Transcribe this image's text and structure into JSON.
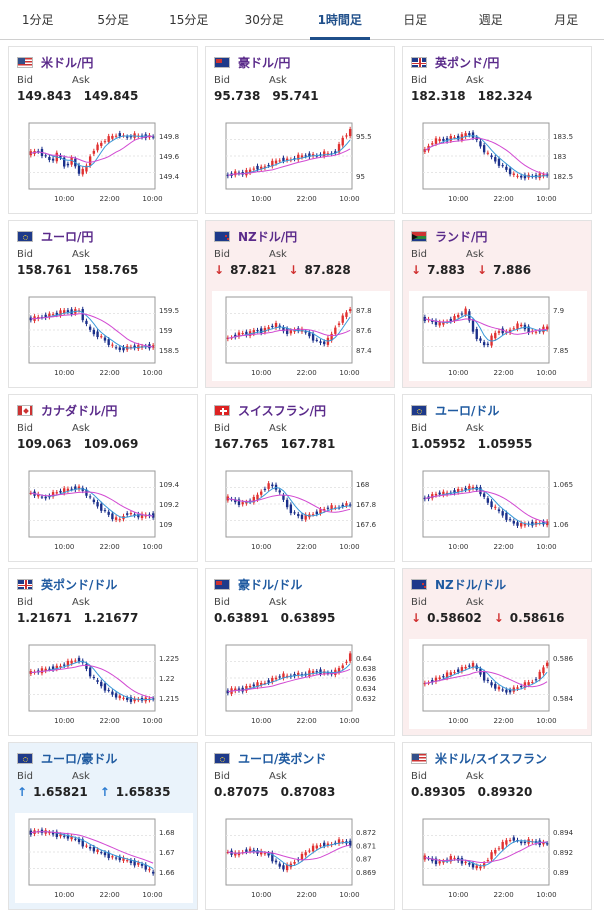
{
  "tabs": [
    {
      "label": "1分足",
      "active": false
    },
    {
      "label": "5分足",
      "active": false
    },
    {
      "label": "15分足",
      "active": false
    },
    {
      "label": "30分足",
      "active": false
    },
    {
      "label": "1時間足",
      "active": true
    },
    {
      "label": "日足",
      "active": false
    },
    {
      "label": "週足",
      "active": false
    },
    {
      "label": "月足",
      "active": false
    }
  ],
  "labels": {
    "bid": "Bid",
    "ask": "Ask"
  },
  "cards": [
    {
      "name": "米ドル/円",
      "flag": "us",
      "bid": "149.843",
      "ask": "149.845",
      "dir": "",
      "bg": "",
      "nameColor": "purple",
      "chart": {
        "yticks": [
          "149.8",
          "149.6",
          "149.4"
        ],
        "xticks": [
          "10:00",
          "22:00",
          "10:00"
        ],
        "trend": [
          0.55,
          0.6,
          0.5,
          0.4,
          0.55,
          0.3,
          0.45,
          0.2,
          0.25,
          0.6,
          0.7,
          0.8,
          0.85,
          0.9,
          0.82,
          0.88,
          0.85,
          0.86,
          0.84
        ]
      }
    },
    {
      "name": "豪ドル/円",
      "flag": "au",
      "bid": "95.738",
      "ask": "95.741",
      "dir": "",
      "bg": "",
      "nameColor": "purple",
      "chart": {
        "yticks": [
          "95.5",
          "95"
        ],
        "xticks": [
          "10:00",
          "22:00",
          "10:00"
        ],
        "trend": [
          0.15,
          0.2,
          0.18,
          0.22,
          0.3,
          0.28,
          0.35,
          0.4,
          0.45,
          0.42,
          0.48,
          0.5,
          0.52,
          0.5,
          0.55,
          0.53,
          0.6,
          0.85,
          0.95
        ]
      }
    },
    {
      "name": "英ポンド/円",
      "flag": "uk",
      "bid": "182.318",
      "ask": "182.324",
      "dir": "",
      "bg": "",
      "nameColor": "purple",
      "chart": {
        "yticks": [
          "183.5",
          "183",
          "182.5"
        ],
        "xticks": [
          "10:00",
          "22:00",
          "10:00"
        ],
        "trend": [
          0.6,
          0.75,
          0.8,
          0.78,
          0.85,
          0.82,
          0.9,
          0.88,
          0.7,
          0.55,
          0.45,
          0.35,
          0.25,
          0.15,
          0.12,
          0.14,
          0.13,
          0.15,
          0.16
        ]
      }
    },
    {
      "name": "ユーロ/円",
      "flag": "eu",
      "bid": "158.761",
      "ask": "158.765",
      "dir": "",
      "bg": "",
      "nameColor": "purple",
      "chart": {
        "yticks": [
          "159.5",
          "159",
          "158.5"
        ],
        "xticks": [
          "10:00",
          "22:00",
          "10:00"
        ],
        "trend": [
          0.7,
          0.72,
          0.75,
          0.78,
          0.8,
          0.85,
          0.82,
          0.88,
          0.6,
          0.45,
          0.4,
          0.3,
          0.2,
          0.15,
          0.18,
          0.2,
          0.19,
          0.21,
          0.2
        ]
      }
    },
    {
      "name": "NZドル/円",
      "flag": "nz",
      "bid": "87.821",
      "ask": "87.828",
      "dir": "down",
      "bg": "pink",
      "nameColor": "purple",
      "chart": {
        "yticks": [
          "87.8",
          "87.6",
          "87.4"
        ],
        "xticks": [
          "10:00",
          "22:00",
          "10:00"
        ],
        "trend": [
          0.35,
          0.4,
          0.45,
          0.42,
          0.5,
          0.48,
          0.55,
          0.6,
          0.5,
          0.45,
          0.52,
          0.48,
          0.4,
          0.3,
          0.25,
          0.35,
          0.6,
          0.75,
          0.9
        ]
      }
    },
    {
      "name": "ランド/円",
      "flag": "za",
      "bid": "7.883",
      "ask": "7.886",
      "dir": "down",
      "bg": "pink",
      "nameColor": "purple",
      "chart": {
        "yticks": [
          "7.9",
          "7.85"
        ],
        "xticks": [
          "10:00",
          "22:00",
          "10:00"
        ],
        "trend": [
          0.7,
          0.65,
          0.6,
          0.65,
          0.7,
          0.78,
          0.85,
          0.5,
          0.3,
          0.2,
          0.4,
          0.5,
          0.45,
          0.55,
          0.6,
          0.5,
          0.45,
          0.5,
          0.55
        ]
      }
    },
    {
      "name": "カナダドル/円",
      "flag": "ca",
      "bid": "109.063",
      "ask": "109.069",
      "dir": "",
      "bg": "",
      "nameColor": "purple",
      "chart": {
        "yticks": [
          "109.4",
          "109.2",
          "109"
        ],
        "xticks": [
          "10:00",
          "22:00",
          "10:00"
        ],
        "trend": [
          0.7,
          0.65,
          0.6,
          0.68,
          0.72,
          0.75,
          0.78,
          0.8,
          0.7,
          0.55,
          0.45,
          0.35,
          0.25,
          0.2,
          0.35,
          0.3,
          0.28,
          0.3,
          0.29
        ]
      }
    },
    {
      "name": "スイスフラン/円",
      "flag": "ch",
      "bid": "167.765",
      "ask": "167.781",
      "dir": "",
      "bg": "",
      "nameColor": "purple",
      "chart": {
        "yticks": [
          "168",
          "167.8",
          "167.6"
        ],
        "xticks": [
          "10:00",
          "22:00",
          "10:00"
        ],
        "trend": [
          0.6,
          0.55,
          0.5,
          0.55,
          0.6,
          0.75,
          0.85,
          0.8,
          0.6,
          0.4,
          0.3,
          0.25,
          0.3,
          0.35,
          0.4,
          0.45,
          0.42,
          0.5,
          0.48
        ]
      }
    },
    {
      "name": "ユーロ/ドル",
      "flag": "eu",
      "bid": "1.05952",
      "ask": "1.05955",
      "dir": "",
      "bg": "",
      "nameColor": "blue",
      "chart": {
        "yticks": [
          "1.065",
          "1.06"
        ],
        "xticks": [
          "10:00",
          "22:00",
          "10:00"
        ],
        "trend": [
          0.6,
          0.65,
          0.7,
          0.68,
          0.72,
          0.75,
          0.78,
          0.8,
          0.75,
          0.55,
          0.45,
          0.35,
          0.25,
          0.15,
          0.12,
          0.14,
          0.15,
          0.16,
          0.15
        ]
      }
    },
    {
      "name": "英ポンド/ドル",
      "flag": "uk",
      "bid": "1.21671",
      "ask": "1.21677",
      "dir": "",
      "bg": "",
      "nameColor": "blue",
      "chart": {
        "yticks": [
          "1.225",
          "1.22",
          "1.215"
        ],
        "xticks": [
          "10:00",
          "22:00",
          "10:00"
        ],
        "trend": [
          0.6,
          0.62,
          0.65,
          0.68,
          0.7,
          0.75,
          0.8,
          0.85,
          0.7,
          0.5,
          0.4,
          0.3,
          0.2,
          0.15,
          0.12,
          0.1,
          0.12,
          0.11,
          0.13
        ]
      }
    },
    {
      "name": "豪ドル/ドル",
      "flag": "au",
      "bid": "0.63891",
      "ask": "0.63895",
      "dir": "",
      "bg": "",
      "nameColor": "blue",
      "chart": {
        "yticks": [
          "0.64",
          "0.638",
          "0.636",
          "0.634",
          "0.632"
        ],
        "xticks": [
          "10:00",
          "22:00",
          "10:00"
        ],
        "trend": [
          0.25,
          0.3,
          0.28,
          0.35,
          0.38,
          0.4,
          0.45,
          0.5,
          0.55,
          0.52,
          0.58,
          0.55,
          0.6,
          0.62,
          0.6,
          0.58,
          0.62,
          0.75,
          0.92
        ]
      }
    },
    {
      "name": "NZドル/ドル",
      "flag": "nz",
      "bid": "0.58602",
      "ask": "0.58616",
      "dir": "down",
      "bg": "pink",
      "nameColor": "blue",
      "chart": {
        "yticks": [
          "0.586",
          "0.584"
        ],
        "xticks": [
          "10:00",
          "22:00",
          "10:00"
        ],
        "trend": [
          0.4,
          0.45,
          0.5,
          0.55,
          0.6,
          0.65,
          0.7,
          0.75,
          0.6,
          0.45,
          0.35,
          0.3,
          0.25,
          0.3,
          0.35,
          0.4,
          0.45,
          0.6,
          0.8
        ]
      }
    },
    {
      "name": "ユーロ/豪ドル",
      "flag": "eu",
      "bid": "1.65821",
      "ask": "1.65835",
      "dir": "up",
      "bg": "blue",
      "nameColor": "blue",
      "chart": {
        "yticks": [
          "1.68",
          "1.67",
          "1.66"
        ],
        "xticks": [
          "10:00",
          "22:00",
          "10:00"
        ],
        "trend": [
          0.85,
          0.88,
          0.86,
          0.84,
          0.8,
          0.78,
          0.75,
          0.7,
          0.6,
          0.55,
          0.5,
          0.45,
          0.4,
          0.38,
          0.35,
          0.3,
          0.28,
          0.2,
          0.1
        ]
      }
    },
    {
      "name": "ユーロ/英ポンド",
      "flag": "eu",
      "bid": "0.87075",
      "ask": "0.87083",
      "dir": "",
      "bg": "",
      "nameColor": "blue",
      "chart": {
        "yticks": [
          "0.872",
          "0.871",
          "0.87",
          "0.869"
        ],
        "xticks": [
          "10:00",
          "22:00",
          "10:00"
        ],
        "trend": [
          0.5,
          0.45,
          0.5,
          0.55,
          0.5,
          0.48,
          0.45,
          0.3,
          0.2,
          0.25,
          0.35,
          0.45,
          0.55,
          0.6,
          0.65,
          0.62,
          0.7,
          0.68,
          0.65
        ]
      }
    },
    {
      "name": "米ドル/スイスフラン",
      "flag": "us",
      "bid": "0.89305",
      "ask": "0.89320",
      "dir": "",
      "bg": "",
      "nameColor": "blue",
      "chart": {
        "yticks": [
          "0.894",
          "0.892",
          "0.89"
        ],
        "xticks": [
          "10:00",
          "22:00",
          "10:00"
        ],
        "trend": [
          0.4,
          0.35,
          0.3,
          0.35,
          0.4,
          0.35,
          0.3,
          0.25,
          0.2,
          0.35,
          0.5,
          0.6,
          0.7,
          0.75,
          0.65,
          0.7,
          0.68,
          0.66,
          0.65
        ]
      }
    }
  ],
  "colors": {
    "accent": "#1f4f8a",
    "up": "#e03030",
    "down": "#1a2f8a",
    "ma": "#d24ad2",
    "ma2": "#3a9ad9"
  }
}
